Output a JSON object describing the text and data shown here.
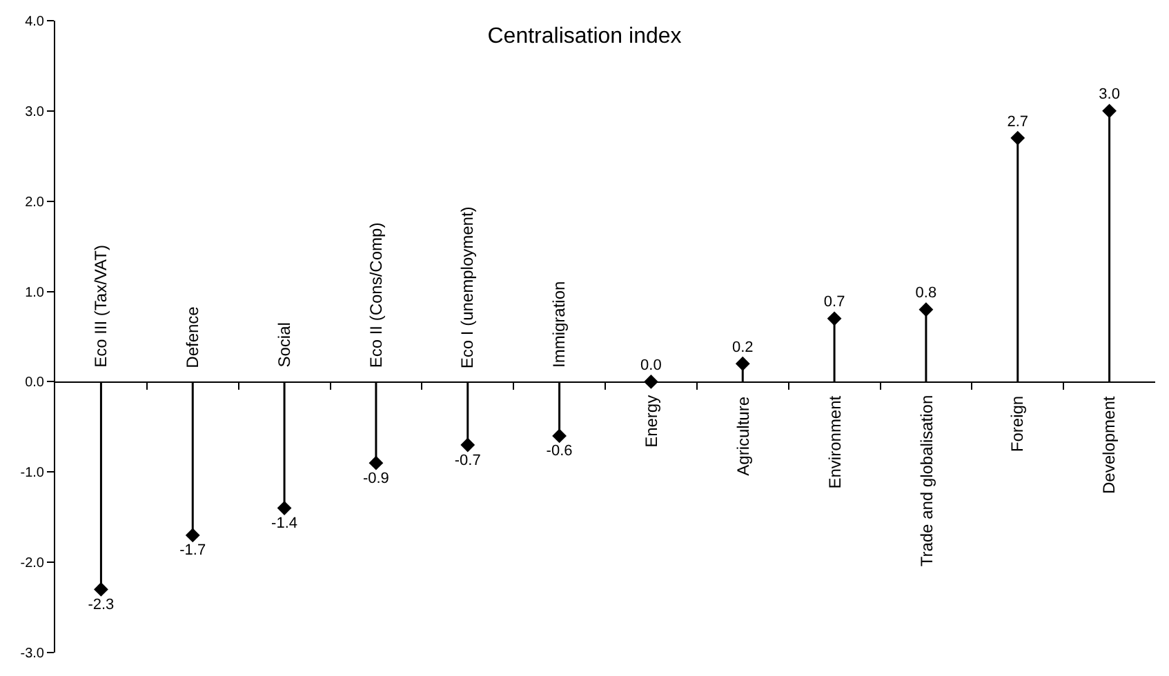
{
  "chart_data": {
    "type": "lollipop",
    "title": "Centralisation index",
    "categories": [
      "Eco III (Tax/VAT)",
      "Defence",
      "Social",
      "Eco II (Cons/Comp)",
      "Eco I (unemployment)",
      "Immigration",
      "Energy",
      "Agriculture",
      "Environment",
      "Trade and globalisation",
      "Foreign",
      "Development"
    ],
    "values": [
      -2.3,
      -1.7,
      -1.4,
      -0.9,
      -0.7,
      -0.6,
      0.0,
      0.2,
      0.7,
      0.8,
      2.7,
      3.0
    ],
    "value_labels": [
      "-2.3",
      "-1.7",
      "-1.4",
      "-0.9",
      "-0.7",
      "-0.6",
      "0.0",
      "0.2",
      "0.7",
      "0.8",
      "2.7",
      "3.0"
    ],
    "color": "#000000",
    "marker": "diamond",
    "ylim": [
      -3.0,
      4.0
    ],
    "yticks": [
      {
        "value": -3.0,
        "label": "-3.0"
      },
      {
        "value": -2.0,
        "label": "-2.0"
      },
      {
        "value": -1.0,
        "label": "-1.0"
      },
      {
        "value": 0.0,
        "label": "0.0"
      },
      {
        "value": 1.0,
        "label": "1.0"
      },
      {
        "value": 2.0,
        "label": "2.0"
      },
      {
        "value": 3.0,
        "label": "3.0"
      },
      {
        "value": 4.0,
        "label": "4.0"
      }
    ]
  }
}
